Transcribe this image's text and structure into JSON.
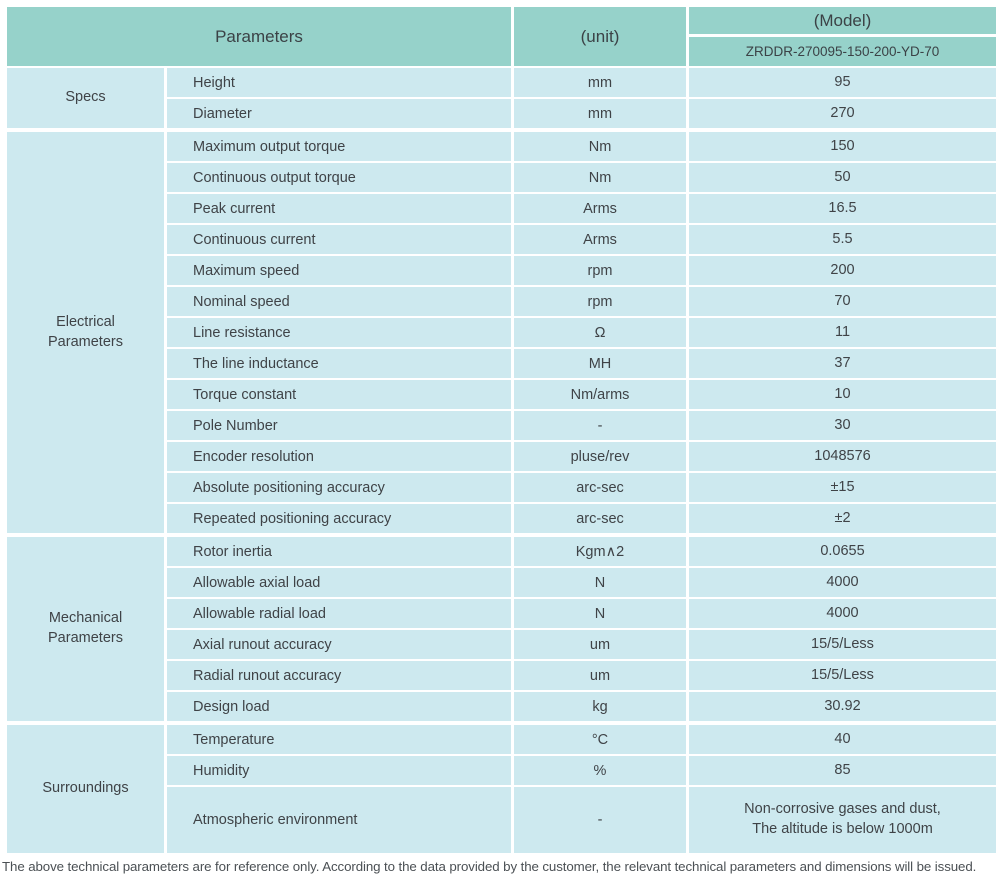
{
  "colors": {
    "header_bg": "#96d2ca",
    "row_bg": "#cde9ef",
    "grid_lines": "#ffffff",
    "text": "#3f4347",
    "footer_text": "#4b5054"
  },
  "table": {
    "header": {
      "parameters_label": "Parameters",
      "unit_label": "(unit)",
      "model_label": "(Model)",
      "model_number": "ZRDDR-270095-150-200-YD-70"
    },
    "sections": [
      {
        "label": [
          "Specs"
        ],
        "rows": [
          {
            "param": "Height",
            "unit": "mm",
            "value": "95"
          },
          {
            "param": "Diameter",
            "unit": "mm",
            "value": "270"
          }
        ]
      },
      {
        "label": [
          "Electrical",
          "Parameters"
        ],
        "rows": [
          {
            "param": "Maximum output torque",
            "unit": "Nm",
            "value": "150"
          },
          {
            "param": "Continuous output torque",
            "unit": "Nm",
            "value": "50"
          },
          {
            "param": "Peak current",
            "unit": "Arms",
            "value": "16.5"
          },
          {
            "param": "Continuous current",
            "unit": "Arms",
            "value": "5.5"
          },
          {
            "param": "Maximum speed",
            "unit": "rpm",
            "value": "200"
          },
          {
            "param": "Nominal speed",
            "unit": "rpm",
            "value": "70"
          },
          {
            "param": "Line resistance",
            "unit": "Ω",
            "value": "11"
          },
          {
            "param": "The line inductance",
            "unit": "MH",
            "value": "37"
          },
          {
            "param": "Torque constant",
            "unit": "Nm/arms",
            "value": "10"
          },
          {
            "param": "Pole Number",
            "unit": "-",
            "value": "30"
          },
          {
            "param": "Encoder resolution",
            "unit": "pluse/rev",
            "value": "1048576"
          },
          {
            "param": "Absolute positioning accuracy",
            "unit": "arc-sec",
            "value": "±15"
          },
          {
            "param": "Repeated positioning accuracy",
            "unit": "arc-sec",
            "value": "±2"
          }
        ]
      },
      {
        "label": [
          "Mechanical",
          "Parameters"
        ],
        "rows": [
          {
            "param": "Rotor inertia",
            "unit": "Kgm∧2",
            "value": "0.0655"
          },
          {
            "param": "Allowable axial load",
            "unit": "N",
            "value": "4000"
          },
          {
            "param": "Allowable radial load",
            "unit": "N",
            "value": "4000"
          },
          {
            "param": "Axial runout accuracy",
            "unit": "um",
            "value": "15/5/Less"
          },
          {
            "param": "Radial runout accuracy",
            "unit": "um",
            "value": "15/5/Less"
          },
          {
            "param": "Design load",
            "unit": "kg",
            "value": "30.92"
          }
        ]
      },
      {
        "label": [
          "Surroundings"
        ],
        "rows": [
          {
            "param": "Temperature",
            "unit": "°C",
            "value": "40"
          },
          {
            "param": "Humidity",
            "unit": "%",
            "value": "85"
          },
          {
            "param": "Atmospheric environment",
            "unit": "-",
            "value": [
              "Non-corrosive gases and dust,",
              "The altitude is below 1000m"
            ],
            "tall": true
          }
        ]
      }
    ]
  },
  "footer": {
    "note": "The above technical parameters are for reference only. According to the data provided by the customer, the relevant technical parameters and dimensions will be issued."
  }
}
